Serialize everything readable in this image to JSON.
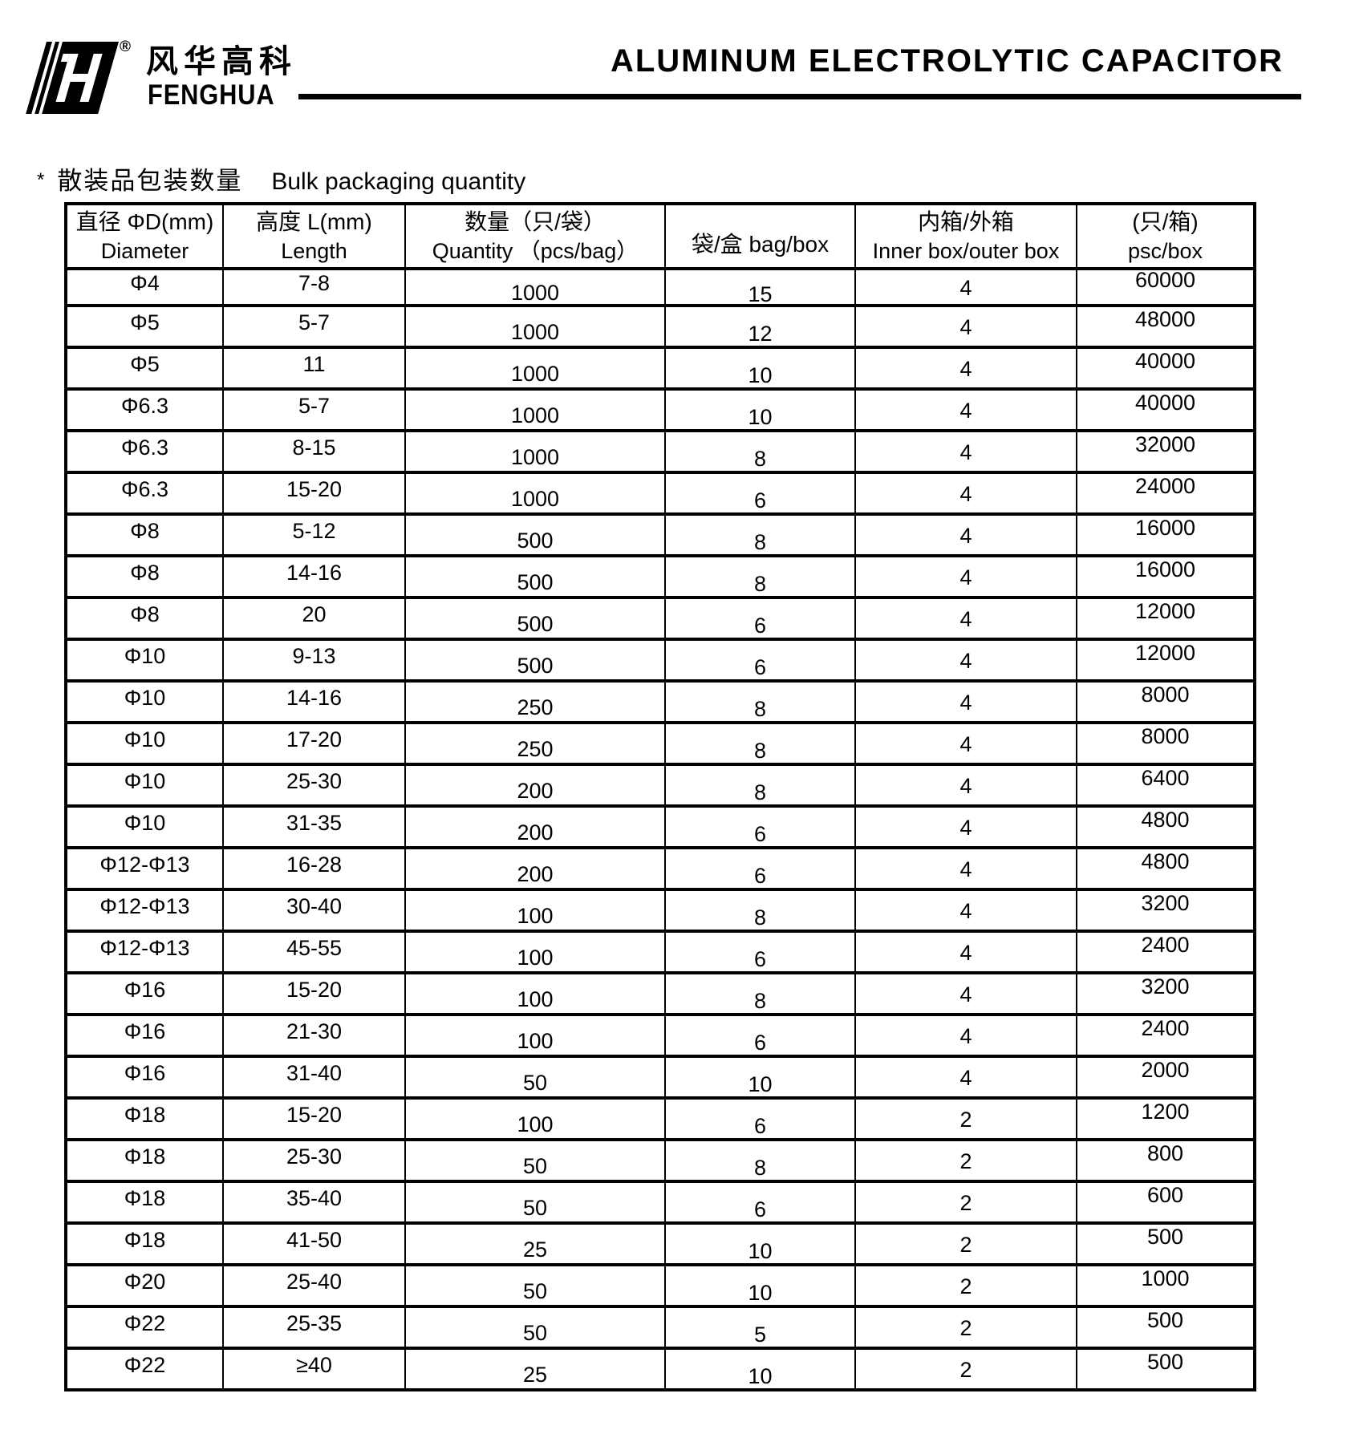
{
  "header": {
    "brand_cn": "风华高科",
    "brand_en": "FENGHUA",
    "registered_mark": "®",
    "title": "ALUMINUM ELECTROLYTIC CAPACITOR"
  },
  "section": {
    "star": "*",
    "heading_cn": "散装品包装数量",
    "heading_en": "Bulk packaging quantity"
  },
  "table": {
    "columns": [
      {
        "line1": "直径 ΦD(mm)",
        "line2": "Diameter"
      },
      {
        "line1": "高度 L(mm)",
        "line2": "Length"
      },
      {
        "line1": "数量（只/袋）",
        "line2": "Quantity （pcs/bag）"
      },
      {
        "line1": "袋/盒 bag/box",
        "line2": ""
      },
      {
        "line1": "内箱/外箱",
        "line2": "Inner box/outer box"
      },
      {
        "line1": "(只/箱)",
        "line2": "psc/box"
      }
    ],
    "rows": [
      [
        "Φ4",
        "7-8",
        "1000",
        "15",
        "4",
        "60000"
      ],
      [
        "Φ5",
        "5-7",
        "1000",
        "12",
        "4",
        "48000"
      ],
      [
        "Φ5",
        "11",
        "1000",
        "10",
        "4",
        "40000"
      ],
      [
        "Φ6.3",
        "5-7",
        "1000",
        "10",
        "4",
        "40000"
      ],
      [
        "Φ6.3",
        "8-15",
        "1000",
        "8",
        "4",
        "32000"
      ],
      [
        "Φ6.3",
        "15-20",
        "1000",
        "6",
        "4",
        "24000"
      ],
      [
        "Φ8",
        "5-12",
        "500",
        "8",
        "4",
        "16000"
      ],
      [
        "Φ8",
        "14-16",
        "500",
        "8",
        "4",
        "16000"
      ],
      [
        "Φ8",
        "20",
        "500",
        "6",
        "4",
        "12000"
      ],
      [
        "Φ10",
        "9-13",
        "500",
        "6",
        "4",
        "12000"
      ],
      [
        "Φ10",
        "14-16",
        "250",
        "8",
        "4",
        "8000"
      ],
      [
        "Φ10",
        "17-20",
        "250",
        "8",
        "4",
        "8000"
      ],
      [
        "Φ10",
        "25-30",
        "200",
        "8",
        "4",
        "6400"
      ],
      [
        "Φ10",
        "31-35",
        "200",
        "6",
        "4",
        "4800"
      ],
      [
        "Φ12-Φ13",
        "16-28",
        "200",
        "6",
        "4",
        "4800"
      ],
      [
        "Φ12-Φ13",
        "30-40",
        "100",
        "8",
        "4",
        "3200"
      ],
      [
        "Φ12-Φ13",
        "45-55",
        "100",
        "6",
        "4",
        "2400"
      ],
      [
        "Φ16",
        "15-20",
        "100",
        "8",
        "4",
        "3200"
      ],
      [
        "Φ16",
        "21-30",
        "100",
        "6",
        "4",
        "2400"
      ],
      [
        "Φ16",
        "31-40",
        "50",
        "10",
        "4",
        "2000"
      ],
      [
        "Φ18",
        "15-20",
        "100",
        "6",
        "2",
        "1200"
      ],
      [
        "Φ18",
        "25-30",
        "50",
        "8",
        "2",
        "800"
      ],
      [
        "Φ18",
        "35-40",
        "50",
        "6",
        "2",
        "600"
      ],
      [
        "Φ18",
        "41-50",
        "25",
        "10",
        "2",
        "500"
      ],
      [
        "Φ20",
        "25-40",
        "50",
        "10",
        "2",
        "1000"
      ],
      [
        "Φ22",
        "25-35",
        "50",
        "5",
        "2",
        "500"
      ],
      [
        "Φ22",
        "≥40",
        "25",
        "10",
        "2",
        "500"
      ]
    ]
  },
  "colors": {
    "ink": "#000000",
    "paper": "#ffffff"
  }
}
